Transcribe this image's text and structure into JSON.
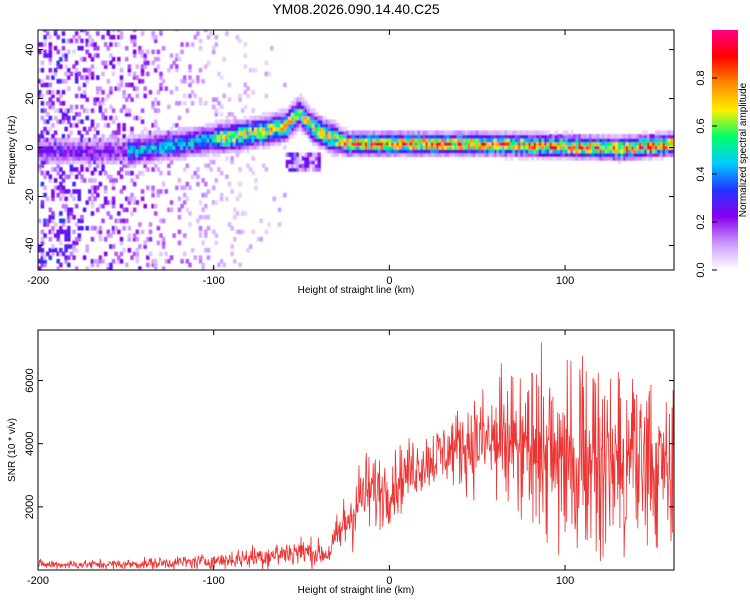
{
  "figure": {
    "title": "YM08.2026.090.14.40.C25"
  },
  "chart_data": [
    {
      "type": "heatmap",
      "title": "",
      "xlabel": "Height of straight line (km)",
      "ylabel": "Frequency (Hz)",
      "xlim": [
        -200,
        162
      ],
      "ylim": [
        -50,
        48
      ],
      "xticks": [
        -200,
        -100,
        0,
        100
      ],
      "yticks": [
        -40,
        -20,
        0,
        20,
        40
      ],
      "xtick_labels": [
        "-200",
        "-100",
        "0",
        "100"
      ],
      "ytick_labels": [
        "-40",
        "-20",
        "0",
        "20",
        "40"
      ],
      "grid": false,
      "ridge": [
        {
          "x": -150,
          "y": -2
        },
        {
          "x": -120,
          "y": 1
        },
        {
          "x": -100,
          "y": 3
        },
        {
          "x": -80,
          "y": 5
        },
        {
          "x": -60,
          "y": 8
        },
        {
          "x": -52,
          "y": 14
        },
        {
          "x": -45,
          "y": 8
        },
        {
          "x": -35,
          "y": 4
        },
        {
          "x": -25,
          "y": 1
        },
        {
          "x": 0,
          "y": 1
        },
        {
          "x": 50,
          "y": 1
        },
        {
          "x": 100,
          "y": 0
        },
        {
          "x": 130,
          "y": -1
        },
        {
          "x": 162,
          "y": 1
        }
      ],
      "colorbar": {
        "label": "Normalized spectral amplitude",
        "range": [
          0.0,
          1.0
        ],
        "ticks": [
          0.0,
          0.2,
          0.4,
          0.6,
          0.8
        ],
        "tick_labels": [
          "0.0",
          "0.2",
          "0.4",
          "0.6",
          "0.8"
        ],
        "colors": [
          "#ffffff",
          "#cc99ff",
          "#8800ee",
          "#2233ff",
          "#00ccff",
          "#00ff66",
          "#ffee00",
          "#ff8800",
          "#ff0000",
          "#ff0088"
        ]
      }
    },
    {
      "type": "line",
      "title": "",
      "xlabel": "Height of straight line (km)",
      "ylabel": "SNR (10 * v/v)",
      "xlim": [
        -200,
        162
      ],
      "ylim": [
        0,
        7600
      ],
      "xticks": [
        -200,
        -100,
        0,
        100
      ],
      "yticks": [
        2000,
        4000,
        6000
      ],
      "xtick_labels": [
        "-200",
        "-100",
        "0",
        "100"
      ],
      "ytick_labels": [
        "2000",
        "4000",
        "6000"
      ],
      "grid": false,
      "series": [
        {
          "name": "SNR",
          "color": "#ee3333",
          "envelope": [
            {
              "x": -200,
              "mean": 170,
              "amp": 120
            },
            {
              "x": -150,
              "mean": 180,
              "amp": 130
            },
            {
              "x": -100,
              "mean": 280,
              "amp": 200
            },
            {
              "x": -70,
              "mean": 450,
              "amp": 350
            },
            {
              "x": -50,
              "mean": 600,
              "amp": 400
            },
            {
              "x": -35,
              "mean": 500,
              "amp": 300
            },
            {
              "x": -25,
              "mean": 1500,
              "amp": 900
            },
            {
              "x": -15,
              "mean": 2400,
              "amp": 1100
            },
            {
              "x": 0,
              "mean": 2600,
              "amp": 900
            },
            {
              "x": 15,
              "mean": 3300,
              "amp": 800
            },
            {
              "x": 30,
              "mean": 3700,
              "amp": 800
            },
            {
              "x": 50,
              "mean": 4100,
              "amp": 1300
            },
            {
              "x": 70,
              "mean": 3900,
              "amp": 1700
            },
            {
              "x": 90,
              "mean": 3700,
              "amp": 2400
            },
            {
              "x": 110,
              "mean": 3500,
              "amp": 2300
            },
            {
              "x": 130,
              "mean": 3200,
              "amp": 2200
            },
            {
              "x": 150,
              "mean": 3300,
              "amp": 2000
            },
            {
              "x": 162,
              "mean": 3400,
              "amp": 1800
            }
          ]
        }
      ]
    }
  ]
}
